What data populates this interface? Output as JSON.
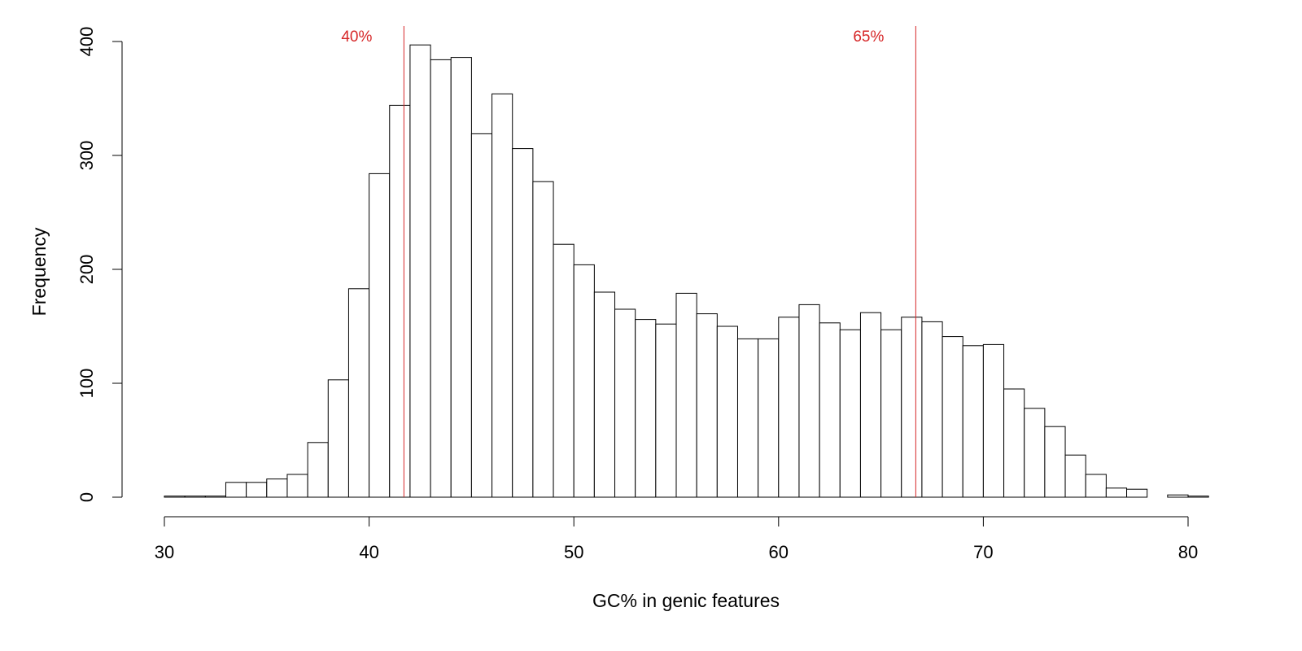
{
  "chart_data": {
    "type": "bar",
    "xlabel": "GC% in genic features",
    "ylabel": "Frequency",
    "xlim": [
      30,
      80
    ],
    "ylim": [
      0,
      400
    ],
    "x_ticks": [
      "30",
      "40",
      "50",
      "60",
      "70",
      "80"
    ],
    "y_ticks": [
      "0",
      "100",
      "200",
      "300",
      "400"
    ],
    "bin_width": 1,
    "bins_start": [
      30,
      31,
      32,
      33,
      34,
      35,
      36,
      37,
      38,
      39,
      40,
      41,
      42,
      43,
      44,
      45,
      46,
      47,
      48,
      49,
      50,
      51,
      52,
      53,
      54,
      55,
      56,
      57,
      58,
      59,
      60,
      61,
      62,
      63,
      64,
      65,
      66,
      67,
      68,
      69,
      70,
      71,
      72,
      73,
      74,
      75,
      76,
      77,
      78,
      79,
      80
    ],
    "values": [
      1,
      1,
      1,
      13,
      13,
      16,
      20,
      48,
      103,
      183,
      284,
      344,
      397,
      384,
      386,
      319,
      354,
      306,
      277,
      222,
      204,
      180,
      165,
      156,
      152,
      179,
      161,
      150,
      139,
      139,
      158,
      169,
      153,
      147,
      162,
      147,
      158,
      154,
      141,
      133,
      134,
      95,
      78,
      62,
      37,
      20,
      8,
      7,
      0,
      2,
      1
    ],
    "reference_lines": [
      {
        "x": 41.7,
        "label": "40%",
        "color": "#d62728"
      },
      {
        "x": 66.7,
        "label": "65%",
        "color": "#d62728"
      }
    ]
  }
}
